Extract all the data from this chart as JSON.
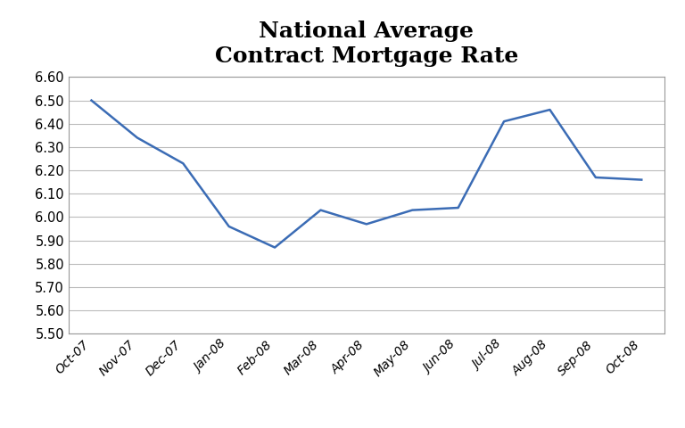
{
  "title": "National Average\nContract Mortgage Rate",
  "categories": [
    "Oct-07",
    "Nov-07",
    "Dec-07",
    "Jan-08",
    "Feb-08",
    "Mar-08",
    "Apr-08",
    "May-08",
    "Jun-08",
    "Jul-08",
    "Aug-08",
    "Sep-08",
    "Oct-08"
  ],
  "values": [
    6.5,
    6.34,
    6.23,
    5.96,
    5.87,
    6.03,
    5.97,
    6.03,
    6.04,
    6.41,
    6.46,
    6.17,
    6.16
  ],
  "line_color": "#3B6CB5",
  "line_width": 1.8,
  "ylim": [
    5.5,
    6.6
  ],
  "yticks": [
    5.5,
    5.6,
    5.7,
    5.8,
    5.9,
    6.0,
    6.1,
    6.2,
    6.3,
    6.4,
    6.5,
    6.6
  ],
  "background_color": "#ffffff",
  "grid_color": "#bbbbbb",
  "title_fontsize": 18,
  "title_fontweight": "bold",
  "tick_fontsize": 10.5,
  "xtick_fontsize": 10
}
